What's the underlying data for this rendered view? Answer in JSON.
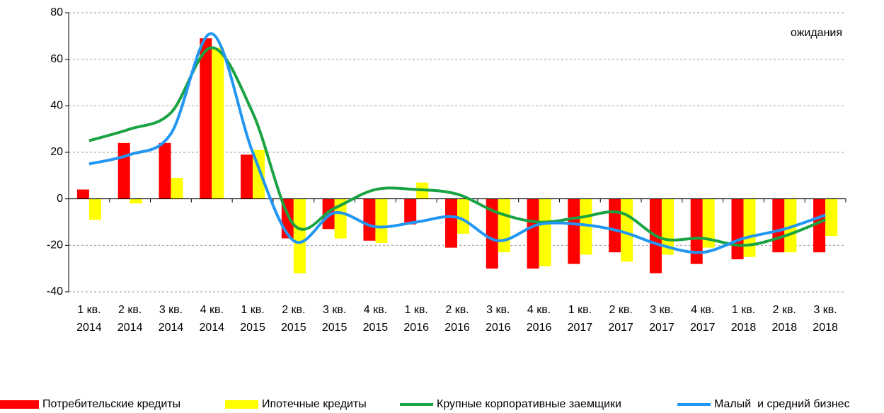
{
  "chart_data": {
    "type": "bar",
    "annotation": "ожидания",
    "categories": [
      [
        "1 кв.",
        "2014"
      ],
      [
        "2 кв.",
        "2014"
      ],
      [
        "3 кв.",
        "2014"
      ],
      [
        "4 кв.",
        "2014"
      ],
      [
        "1 кв.",
        "2015"
      ],
      [
        "2 кв.",
        "2015"
      ],
      [
        "3 кв.",
        "2015"
      ],
      [
        "4 кв.",
        "2015"
      ],
      [
        "1 кв.",
        "2016"
      ],
      [
        "2 кв.",
        "2016"
      ],
      [
        "3 кв.",
        "2016"
      ],
      [
        "4 кв.",
        "2016"
      ],
      [
        "1 кв.",
        "2017"
      ],
      [
        "2 кв.",
        "2017"
      ],
      [
        "3 кв.",
        "2017"
      ],
      [
        "4 кв.",
        "2017"
      ],
      [
        "1 кв.",
        "2018"
      ],
      [
        "2 кв.",
        "2018"
      ],
      [
        "3 кв.",
        "2018"
      ]
    ],
    "series": [
      {
        "name": "Потребительские кредиты",
        "type": "bar",
        "color": "#ff0000",
        "values": [
          4,
          24,
          24,
          69,
          19,
          -17,
          -13,
          -18,
          -11,
          -21,
          -30,
          -30,
          -28,
          -23,
          -32,
          -28,
          -26,
          -23,
          -23
        ]
      },
      {
        "name": "Ипотечные кредиты",
        "type": "bar",
        "color": "#ffff00",
        "values": [
          -9,
          -2,
          9,
          65,
          21,
          -32,
          -17,
          -19,
          7,
          -15,
          -23,
          -29,
          -24,
          -27,
          -24,
          -21,
          -25,
          -23,
          -16
        ]
      },
      {
        "name": "Крупные корпоративные заемщики",
        "type": "line",
        "color": "#1aa342",
        "values": [
          25,
          30,
          37,
          65,
          37,
          -11,
          -4,
          4,
          4,
          2,
          -6,
          -10,
          -8,
          -6,
          -17,
          -17,
          -20,
          -16,
          -9
        ]
      },
      {
        "name": "Малый  и средний бизнес",
        "type": "line",
        "color": "#2196f3",
        "values": [
          15,
          19,
          28,
          71,
          20,
          -18,
          -6,
          -12,
          -10,
          -8,
          -18,
          -11,
          -11,
          -14,
          -20,
          -23,
          -17,
          -13,
          -7
        ]
      }
    ],
    "ylim": [
      -40,
      80
    ],
    "yticks": [
      -40,
      -20,
      0,
      20,
      40,
      60,
      80
    ],
    "grid": true
  }
}
